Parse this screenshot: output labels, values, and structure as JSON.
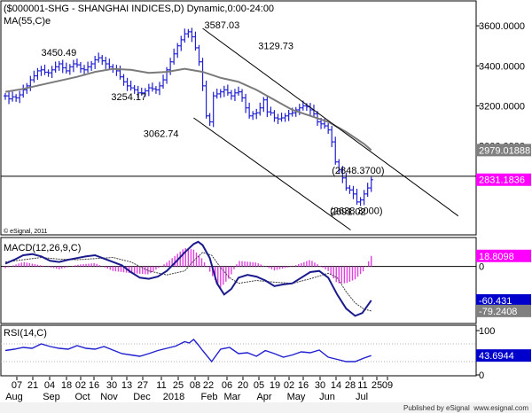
{
  "colors": {
    "price_bars": "#2020d0",
    "ma_line": "#7a7a7a",
    "channel_lines": "#000000",
    "macd_line": "#1a1a8c",
    "signal_line": "#404040",
    "histogram": "#e040e0",
    "rsi_line": "#2020d0",
    "value_box_magenta": "#ff00ff",
    "value_box_blue": "#0000cc",
    "value_box_gray": "#808080"
  },
  "chart_data": [
    {
      "type": "ohlc",
      "title": "($000001-SHG - SHANGHAI INDICES,D) Dynamic,0:00-24:00",
      "indicator_label": "MA(55,C)e",
      "copyright": "© eSignal, 2011",
      "ylim": [
        2560,
        3720
      ],
      "y_ticks": [
        "3600.0000",
        "3400.0000",
        "3200.0000",
        "3000.0000"
      ],
      "series": [
        {
          "name": "price",
          "x": [
            0,
            4,
            8,
            12,
            16,
            20,
            24,
            28,
            32,
            36,
            40,
            44,
            48,
            52,
            56,
            60,
            64,
            68,
            72,
            76,
            80,
            84,
            88,
            92,
            96,
            100,
            104,
            108,
            112,
            116,
            120,
            124,
            128,
            132,
            136,
            140,
            144,
            148,
            152,
            156,
            160,
            164,
            168,
            172,
            176,
            180,
            184,
            188,
            192,
            196,
            200,
            204,
            208,
            212,
            216,
            220,
            224,
            228,
            232,
            236,
            240,
            244,
            248,
            252,
            256,
            260,
            264,
            268,
            272,
            276,
            280,
            284,
            288,
            292,
            296,
            300,
            304,
            308,
            312,
            316,
            320,
            324,
            328,
            332,
            336,
            340,
            344,
            348,
            352,
            356,
            360,
            364,
            368,
            372,
            376,
            380,
            384,
            388,
            392,
            396,
            400,
            404,
            408
          ],
          "values": [
            3250,
            3235,
            3245,
            3240,
            3255,
            3280,
            3300,
            3330,
            3350,
            3375,
            3380,
            3368,
            3365,
            3380,
            3395,
            3410,
            3390,
            3375,
            3395,
            3410,
            3405,
            3385,
            3380,
            3395,
            3410,
            3430,
            3440,
            3425,
            3410,
            3395,
            3385,
            3375,
            3345,
            3320,
            3300,
            3290,
            3280,
            3265,
            3265,
            3275,
            3290,
            3285,
            3280,
            3300,
            3330,
            3380,
            3420,
            3460,
            3500,
            3530,
            3560,
            3570,
            3545,
            3490,
            3420,
            3300,
            3150,
            3120,
            3250,
            3260,
            3270,
            3280,
            3265,
            3250,
            3265,
            3270,
            3240,
            3190,
            3150,
            3160,
            3165,
            3190,
            3230,
            3170,
            3165,
            3140,
            3135,
            3140,
            3150,
            3160,
            3165,
            3180,
            3190,
            3200,
            3195,
            3180,
            3160,
            3120,
            3110,
            3100,
            3080,
            3020,
            2920,
            2880,
            2840,
            2790,
            2780,
            2760,
            2720,
            2730,
            2760,
            2790,
            2831.1836
          ]
        },
        {
          "name": "MA(55,C)e",
          "x": [
            0,
            20,
            40,
            60,
            80,
            100,
            120,
            140,
            160,
            180,
            200,
            220,
            240,
            260,
            280,
            300,
            320,
            340,
            360,
            380,
            400,
            408
          ],
          "values": [
            3270,
            3285,
            3305,
            3325,
            3345,
            3370,
            3385,
            3380,
            3365,
            3370,
            3385,
            3370,
            3340,
            3320,
            3280,
            3230,
            3180,
            3150,
            3120,
            3070,
            3010,
            2979.0188
          ]
        }
      ],
      "annotations": [
        "3587.03",
        "3450.49",
        "3254.17",
        "3062.74",
        "3129.73",
        "2691.02",
        "(2848.3700)",
        "(2638.3000)"
      ],
      "value_boxes": [
        "2979.01888",
        "2831.1836"
      ],
      "trendlines": [
        {
          "x": [
            220,
            505
          ],
          "y": [
            3587.03,
            2650
          ]
        },
        {
          "x": [
            210,
            385
          ],
          "y": [
            3140,
            2580
          ]
        }
      ],
      "horizontal_line": 2848.37
    },
    {
      "type": "line",
      "title": "MACD(12,26,9,C)",
      "ylim": [
        -100,
        50
      ],
      "y_ticks": [
        "0"
      ],
      "series": [
        {
          "name": "macd",
          "x": [
            0,
            10,
            20,
            30,
            40,
            50,
            60,
            70,
            80,
            90,
            100,
            110,
            120,
            130,
            140,
            150,
            160,
            170,
            180,
            190,
            200,
            210,
            215,
            220,
            228,
            236,
            244,
            252,
            260,
            270,
            280,
            290,
            300,
            310,
            320,
            330,
            340,
            350,
            360,
            370,
            380,
            390,
            398,
            408
          ],
          "values": [
            5,
            12,
            20,
            22,
            18,
            10,
            8,
            12,
            15,
            18,
            20,
            14,
            8,
            2,
            -10,
            -20,
            -22,
            -18,
            -8,
            8,
            25,
            40,
            44,
            38,
            15,
            -30,
            -50,
            -40,
            -20,
            -15,
            -18,
            -25,
            -35,
            -32,
            -30,
            -20,
            -10,
            -8,
            -20,
            -50,
            -75,
            -88,
            -83,
            -60.431
          ]
        },
        {
          "name": "signal",
          "x": [
            0,
            20,
            40,
            60,
            80,
            100,
            120,
            140,
            160,
            180,
            200,
            210,
            220,
            230,
            240,
            250,
            260,
            280,
            300,
            320,
            340,
            360,
            370,
            380,
            390,
            400,
            408
          ],
          "values": [
            8,
            12,
            16,
            13,
            12,
            14,
            16,
            8,
            -8,
            -15,
            -8,
            10,
            25,
            20,
            -2,
            -20,
            -30,
            -25,
            -28,
            -30,
            -22,
            -12,
            -20,
            -45,
            -65,
            -76,
            -79.2408
          ]
        },
        {
          "name": "histogram",
          "x": [
            0,
            20,
            40,
            60,
            80,
            100,
            120,
            140,
            160,
            180,
            200,
            210,
            220,
            230,
            240,
            250,
            260,
            280,
            300,
            320,
            340,
            360,
            370,
            380,
            390,
            400,
            408
          ],
          "values": [
            -3,
            8,
            2,
            -5,
            3,
            6,
            -8,
            -12,
            -14,
            7,
            33,
            30,
            13,
            -15,
            -38,
            -20,
            10,
            7,
            -7,
            0,
            12,
            -8,
            -30,
            -30,
            -23,
            -7,
            18.8098
          ]
        }
      ],
      "value_boxes": [
        "18.8098",
        "-60.431",
        "-79.2408"
      ]
    },
    {
      "type": "line",
      "title": "RSI(14,C)",
      "ylim": [
        0,
        110
      ],
      "y_ticks": [
        "100",
        "50",
        "0"
      ],
      "series": [
        {
          "name": "rsi",
          "x": [
            0,
            10,
            20,
            30,
            40,
            50,
            60,
            70,
            80,
            90,
            100,
            110,
            120,
            130,
            140,
            150,
            160,
            170,
            180,
            190,
            200,
            205,
            210,
            215,
            220,
            230,
            240,
            250,
            260,
            270,
            280,
            290,
            300,
            310,
            320,
            330,
            340,
            350,
            360,
            370,
            380,
            390,
            400,
            408
          ],
          "values": [
            55,
            58,
            62,
            60,
            70,
            64,
            60,
            58,
            66,
            60,
            58,
            64,
            56,
            48,
            45,
            42,
            48,
            55,
            60,
            65,
            75,
            72,
            80,
            68,
            55,
            30,
            58,
            62,
            48,
            50,
            42,
            55,
            48,
            40,
            45,
            52,
            50,
            56,
            40,
            35,
            30,
            30,
            38,
            43.6944
          ]
        }
      ],
      "value_boxes": [
        "43.6944"
      ]
    }
  ],
  "x_axis": {
    "labels": [
      "07",
      "21",
      "04",
      "18",
      "02",
      "16",
      "30",
      "13",
      "27",
      "11",
      "25",
      "08",
      "22",
      "06",
      "20",
      "05",
      "19",
      "02",
      "16",
      "30",
      "14",
      "28",
      "11",
      "25",
      "09"
    ],
    "months": [
      "Aug",
      "Sep",
      "Oct",
      "Nov",
      "Dec",
      "2018",
      "Feb",
      "Mar",
      "Apr",
      "May",
      "Jun",
      "Jul"
    ]
  },
  "footer": {
    "published": "Published by eSignal",
    "site": "www.esignal.com"
  }
}
